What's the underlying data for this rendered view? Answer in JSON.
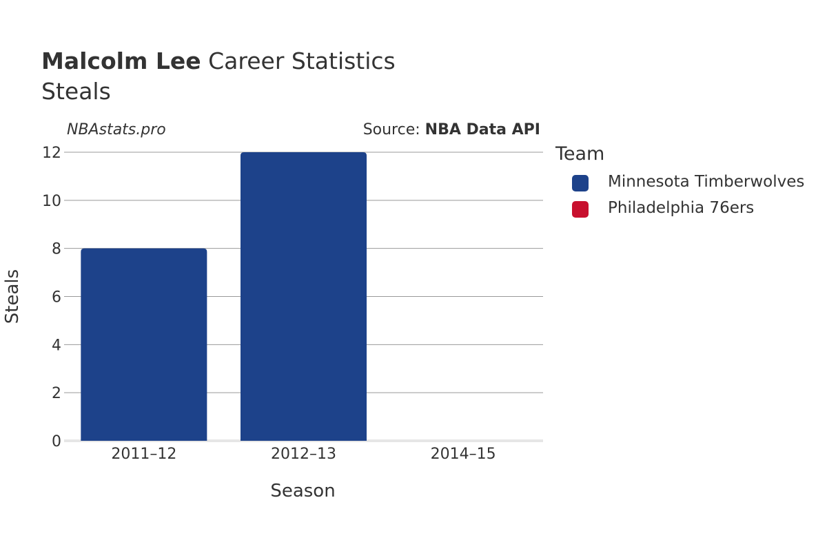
{
  "header": {
    "title_bold": "Malcolm Lee",
    "title_rest": " Career Statistics",
    "subtitle": "Steals",
    "credit": "NBAstats.pro",
    "source_prefix": "Source: ",
    "source_name": "NBA Data API"
  },
  "legend": {
    "title": "Team",
    "items": [
      {
        "label": "Minnesota Timberwolves",
        "color": "#1d428a"
      },
      {
        "label": "Philadelphia 76ers",
        "color": "#c8102e"
      }
    ]
  },
  "chart_data": {
    "type": "bar",
    "title": "Malcolm Lee Career Statistics",
    "subtitle": "Steals",
    "xlabel": "Season",
    "ylabel": "Steals",
    "categories": [
      "2011–12",
      "2012–13",
      "2014–15"
    ],
    "series": [
      {
        "name": "Minnesota Timberwolves",
        "color": "#1d428a",
        "values": [
          8,
          12,
          0
        ]
      },
      {
        "name": "Philadelphia 76ers",
        "color": "#c8102e",
        "values": [
          0,
          0,
          0
        ]
      }
    ],
    "ylim": [
      0,
      12
    ],
    "yticks": [
      0,
      2,
      4,
      6,
      8,
      10,
      12
    ],
    "grid": true,
    "legend_position": "right"
  }
}
